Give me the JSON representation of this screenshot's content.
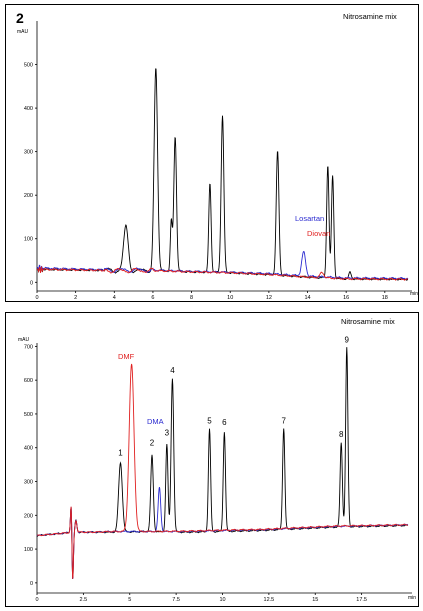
{
  "chart_data": [
    {
      "type": "line",
      "panel_number": "2",
      "title": "Nitrosamine mix",
      "ylabel": "mAU",
      "xlabel": "min",
      "xlim": [
        0,
        19.2
      ],
      "ylim": [
        -20,
        600
      ],
      "xticks": [
        0,
        2,
        4,
        6,
        8,
        10,
        12,
        14,
        16,
        18
      ],
      "yticks": [
        0,
        100,
        200,
        300,
        400,
        500
      ],
      "annotations": [
        {
          "text": "Losartan",
          "color": "#2b2bd0"
        },
        {
          "text": "Diovan",
          "color": "#e02020"
        }
      ],
      "series": [
        {
          "color": "#000000",
          "baseline": [
            [
              0,
              30
            ],
            [
              4,
              27
            ],
            [
              6,
              27
            ],
            [
              8,
              24
            ],
            [
              10,
              22
            ],
            [
              12,
              18
            ],
            [
              14,
              12
            ],
            [
              16,
              8
            ],
            [
              19,
              7
            ]
          ],
          "peaks": [
            {
              "x": 4.6,
              "height": 100,
              "width": 0.12
            },
            {
              "x": 6.15,
              "height": 465,
              "width": 0.09
            },
            {
              "x": 6.95,
              "height": 115,
              "width": 0.05
            },
            {
              "x": 7.15,
              "height": 310,
              "width": 0.07
            },
            {
              "x": 8.95,
              "height": 205,
              "width": 0.06
            },
            {
              "x": 9.6,
              "height": 360,
              "width": 0.07
            },
            {
              "x": 12.45,
              "height": 285,
              "width": 0.07
            },
            {
              "x": 15.05,
              "height": 260,
              "width": 0.06
            },
            {
              "x": 15.3,
              "height": 235,
              "width": 0.06
            },
            {
              "x": 16.2,
              "height": 15,
              "width": 0.06
            }
          ]
        },
        {
          "color": "#2b2bd0",
          "baseline": [
            [
              0,
              33
            ],
            [
              4,
              28
            ],
            [
              6,
              28
            ],
            [
              8,
              25
            ],
            [
              10,
              23
            ],
            [
              12,
              20
            ],
            [
              14,
              14
            ],
            [
              16,
              10
            ],
            [
              19,
              9
            ]
          ],
          "peaks": [
            {
              "x": 13.8,
              "height": 55,
              "width": 0.1
            }
          ]
        },
        {
          "color": "#e02020",
          "baseline": [
            [
              0,
              30
            ],
            [
              4,
              27
            ],
            [
              6,
              27
            ],
            [
              8,
              24
            ],
            [
              10,
              22
            ],
            [
              12,
              18
            ],
            [
              14,
              12
            ],
            [
              16,
              8
            ],
            [
              19,
              7
            ]
          ],
          "peaks": [
            {
              "x": 14.75,
              "height": 12,
              "width": 0.1
            }
          ]
        }
      ]
    },
    {
      "type": "line",
      "title": "Nitrosamine mix",
      "ylabel": "mAU",
      "xlabel": "min",
      "xlim": [
        0,
        20
      ],
      "ylim": [
        -30,
        710
      ],
      "xticks": [
        0,
        2.5,
        5,
        7.5,
        10,
        12.5,
        15,
        17.5
      ],
      "yticks": [
        0,
        100,
        200,
        300,
        400,
        500,
        600,
        700
      ],
      "annotations": [
        {
          "text": "DMF",
          "color": "#e02020"
        },
        {
          "text": "DMA",
          "color": "#2b2bd0"
        }
      ],
      "peak_labels": [
        {
          "text": "1",
          "x": 4.5,
          "y": 365
        },
        {
          "text": "2",
          "x": 6.2,
          "y": 395
        },
        {
          "text": "3",
          "x": 7.0,
          "y": 425
        },
        {
          "text": "4",
          "x": 7.3,
          "y": 610
        },
        {
          "text": "5",
          "x": 9.3,
          "y": 460
        },
        {
          "text": "6",
          "x": 10.1,
          "y": 455
        },
        {
          "text": "7",
          "x": 13.3,
          "y": 460
        },
        {
          "text": "8",
          "x": 16.4,
          "y": 420
        },
        {
          "text": "9",
          "x": 16.7,
          "y": 700
        }
      ],
      "series": [
        {
          "color": "#000000",
          "baseline": [
            [
              0,
              140
            ],
            [
              1,
              145
            ],
            [
              2,
              150
            ],
            [
              3,
              150
            ],
            [
              4,
              150
            ],
            [
              6,
              152
            ],
            [
              8,
              150
            ],
            [
              10,
              152
            ],
            [
              12,
              155
            ],
            [
              14,
              160
            ],
            [
              16,
              165
            ],
            [
              20,
              170
            ]
          ],
          "peaks": [
            {
              "x": 4.5,
              "height": 205,
              "width": 0.1
            },
            {
              "x": 6.2,
              "height": 225,
              "width": 0.07
            },
            {
              "x": 7.0,
              "height": 260,
              "width": 0.06
            },
            {
              "x": 7.3,
              "height": 455,
              "width": 0.07
            },
            {
              "x": 9.3,
              "height": 305,
              "width": 0.06
            },
            {
              "x": 10.1,
              "height": 295,
              "width": 0.06
            },
            {
              "x": 13.3,
              "height": 300,
              "width": 0.06
            },
            {
              "x": 16.4,
              "height": 250,
              "width": 0.06
            },
            {
              "x": 16.7,
              "height": 530,
              "width": 0.06
            }
          ]
        },
        {
          "color": "#2b2bd0",
          "baseline": [
            [
              0,
              140
            ],
            [
              1,
              145
            ],
            [
              2,
              150
            ],
            [
              3,
              150
            ],
            [
              4,
              152
            ],
            [
              6,
              152
            ],
            [
              8,
              152
            ],
            [
              10,
              155
            ],
            [
              12,
              157
            ],
            [
              14,
              162
            ],
            [
              16,
              167
            ],
            [
              20,
              172
            ]
          ],
          "peaks": [
            {
              "x": 6.6,
              "height": 130,
              "width": 0.07
            }
          ]
        },
        {
          "color": "#e02020",
          "baseline": [
            [
              0,
              140
            ],
            [
              1,
              145
            ],
            [
              2,
              150
            ],
            [
              3,
              150
            ],
            [
              4,
              152
            ],
            [
              6,
              152
            ],
            [
              8,
              153
            ],
            [
              10,
              156
            ],
            [
              12,
              158
            ],
            [
              14,
              163
            ],
            [
              16,
              168
            ],
            [
              20,
              172
            ]
          ],
          "peaks": [
            {
              "x": 5.1,
              "height": 495,
              "width": 0.13
            }
          ]
        }
      ]
    }
  ]
}
